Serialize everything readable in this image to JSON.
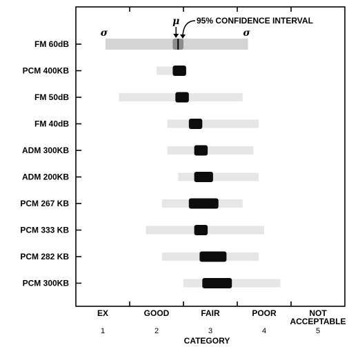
{
  "chart_data": {
    "type": "interval",
    "categories": [
      "FM 60dB",
      "PCM 400KB",
      "FM 50dB",
      "FM 40dB",
      "ADM 300KB",
      "ADM 200KB",
      "PCM 267 KB",
      "PCM 333 KB",
      "PCM 282 KB",
      "PCM 300KB"
    ],
    "series": [
      {
        "name": "95% CONFIDENCE INTERVAL",
        "values": [
          [
            2.3,
            2.5
          ],
          [
            2.3,
            2.55
          ],
          [
            2.35,
            2.6
          ],
          [
            2.6,
            2.85
          ],
          [
            2.7,
            2.95
          ],
          [
            2.7,
            3.05
          ],
          [
            2.6,
            3.15
          ],
          [
            2.7,
            2.95
          ],
          [
            2.8,
            3.3
          ],
          [
            2.85,
            3.4
          ]
        ]
      }
    ],
    "sigma_band": [
      [
        1.05,
        3.7
      ],
      [
        2.0,
        2.3
      ],
      [
        1.3,
        3.6
      ],
      [
        2.2,
        3.9
      ],
      [
        2.2,
        3.8
      ],
      [
        2.4,
        3.9
      ],
      [
        2.1,
        3.6
      ],
      [
        1.8,
        4.0
      ],
      [
        2.1,
        3.9
      ],
      [
        2.5,
        4.3
      ]
    ],
    "means": [
      2.4,
      2.43,
      2.48,
      2.73,
      2.82,
      2.88,
      2.88,
      2.83,
      3.05,
      3.13
    ],
    "x_ticks": [
      1,
      2,
      3,
      4,
      5
    ],
    "x_tick_words": [
      "EX",
      "GOOD",
      "FAIR",
      "POOR",
      "NOT ACCEPTABLE"
    ],
    "xlim": [
      0.5,
      5.5
    ],
    "xlabel": "CATEGORY",
    "annotations": {
      "mu": "μ",
      "sigma": "σ",
      "ci": "95% CONFIDENCE INTERVAL"
    }
  }
}
